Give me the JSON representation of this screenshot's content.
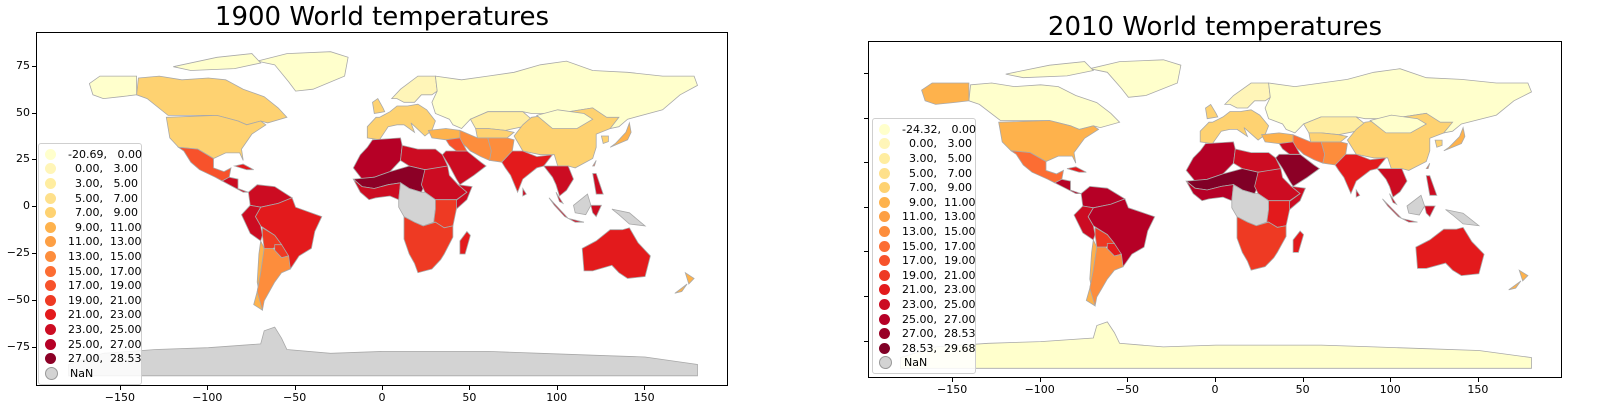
{
  "chart_data": [
    {
      "type": "map",
      "title": "1900 World temperatures",
      "xlim": [
        -198,
        198
      ],
      "ylim": [
        -96,
        93
      ],
      "xticks": [
        "−150",
        "−100",
        "−50",
        "0",
        "50",
        "100",
        "150"
      ],
      "xtick_values": [
        -150,
        -100,
        -50,
        0,
        50,
        100,
        150
      ],
      "yticks": [
        "75",
        "50",
        "25",
        "0",
        "−25",
        "−50",
        "−75"
      ],
      "ytick_values": [
        75,
        50,
        25,
        0,
        -25,
        -50,
        -75
      ],
      "colormap": "YlOrRd",
      "legend_placement": "lower-left",
      "legend": [
        {
          "label": "-20.69,   0.00",
          "color": "#ffffcc"
        },
        {
          "label": "  0.00,   3.00",
          "color": "#fff5b8"
        },
        {
          "label": "  3.00,   5.00",
          "color": "#ffeda0"
        },
        {
          "label": "  5.00,   7.00",
          "color": "#fee08b"
        },
        {
          "label": "  7.00,   9.00",
          "color": "#fed271"
        },
        {
          "label": "  9.00,  11.00",
          "color": "#feb24c"
        },
        {
          "label": "11.00,  13.00",
          "color": "#fd9f44"
        },
        {
          "label": "13.00,  15.00",
          "color": "#fd8d3c"
        },
        {
          "label": "15.00,  17.00",
          "color": "#fc6d33"
        },
        {
          "label": "17.00,  19.00",
          "color": "#f7522b"
        },
        {
          "label": "19.00,  21.00",
          "color": "#ee3a23"
        },
        {
          "label": "21.00,  23.00",
          "color": "#e31a1c"
        },
        {
          "label": "23.00,  25.00",
          "color": "#cc0c22"
        },
        {
          "label": "25.00,  27.00",
          "color": "#b60026"
        },
        {
          "label": "27.00,  28.53",
          "color": "#8c0026"
        },
        {
          "label": "NaN",
          "color": "#d3d3d3"
        }
      ]
    },
    {
      "type": "map",
      "title": "2010 World temperatures",
      "xlim": [
        -198,
        198
      ],
      "ylim": [
        -96,
        93
      ],
      "xticks": [
        "−150",
        "−100",
        "−50",
        "0",
        "50",
        "100",
        "150"
      ],
      "xtick_values": [
        -150,
        -100,
        -50,
        0,
        50,
        100,
        150
      ],
      "ytick_values": [
        75,
        50,
        25,
        0,
        -25,
        -50,
        -75
      ],
      "colormap": "YlOrRd",
      "legend_placement": "lower-left",
      "legend": [
        {
          "label": "-24.32,   0.00",
          "color": "#ffffcc"
        },
        {
          "label": "  0.00,   3.00",
          "color": "#fff5b8"
        },
        {
          "label": "  3.00,   5.00",
          "color": "#ffeda0"
        },
        {
          "label": "  5.00,   7.00",
          "color": "#fee08b"
        },
        {
          "label": "  7.00,   9.00",
          "color": "#fed271"
        },
        {
          "label": "  9.00,  11.00",
          "color": "#feb24c"
        },
        {
          "label": "11.00,  13.00",
          "color": "#fd9f44"
        },
        {
          "label": "13.00,  15.00",
          "color": "#fd8d3c"
        },
        {
          "label": "15.00,  17.00",
          "color": "#fc6d33"
        },
        {
          "label": "17.00,  19.00",
          "color": "#f7522b"
        },
        {
          "label": "19.00,  21.00",
          "color": "#ee3a23"
        },
        {
          "label": "21.00,  23.00",
          "color": "#e31a1c"
        },
        {
          "label": "23.00,  25.00",
          "color": "#cc0c22"
        },
        {
          "label": "25.00,  27.00",
          "color": "#b60026"
        },
        {
          "label": "27.00,  28.53",
          "color": "#9a0026"
        },
        {
          "label": "28.53,  29.68",
          "color": "#800026"
        },
        {
          "label": "NaN",
          "color": "#d3d3d3"
        }
      ]
    }
  ]
}
